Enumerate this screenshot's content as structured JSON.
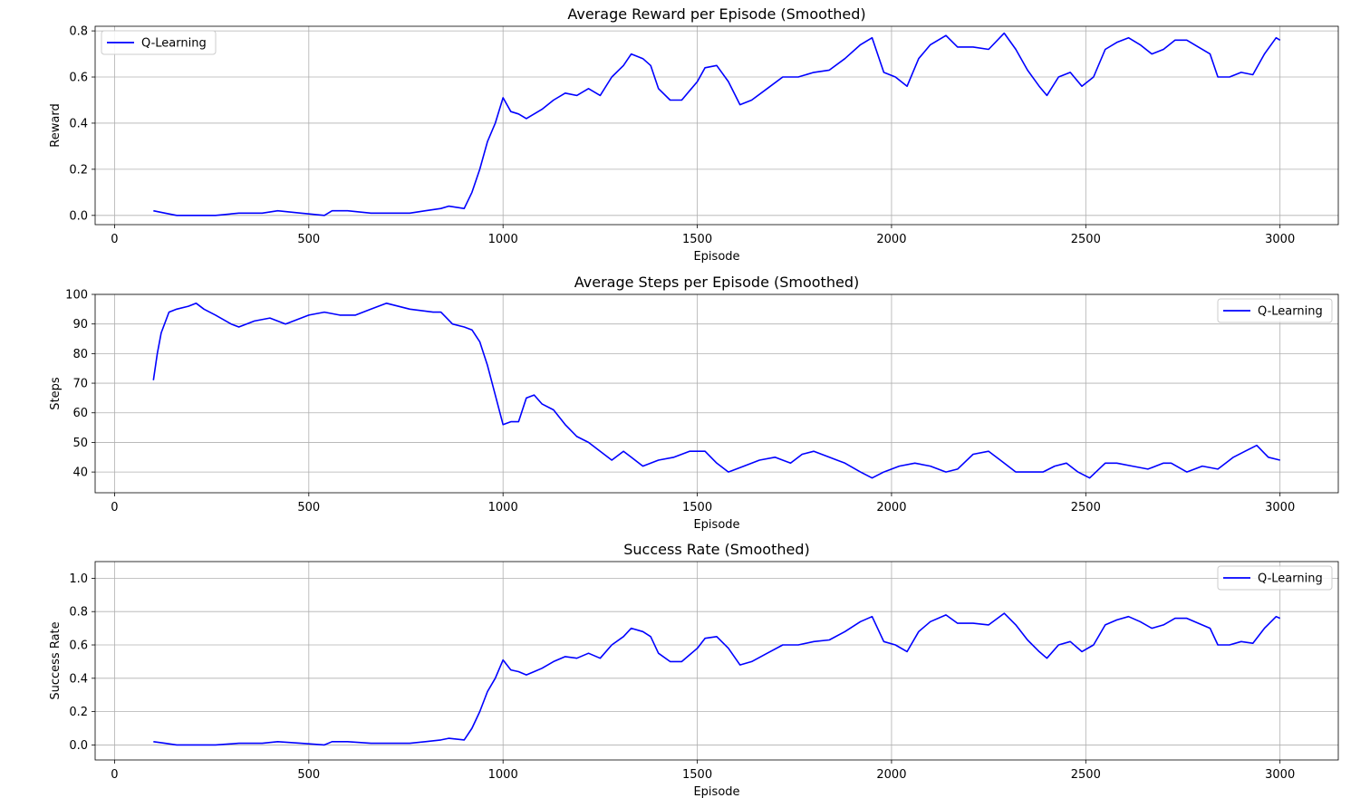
{
  "colors": {
    "series": "#0000ff",
    "grid": "#b0b0b0",
    "axes": "#000000",
    "background": "#ffffff"
  },
  "chart_data": [
    {
      "type": "line",
      "title": "Average Reward per Episode (Smoothed)",
      "xlabel": "Episode",
      "ylabel": "Reward",
      "xlim": [
        -50,
        3150
      ],
      "ylim": [
        -0.04,
        0.82
      ],
      "xticks": [
        0,
        500,
        1000,
        1500,
        2000,
        2500,
        3000
      ],
      "yticks": [
        0.0,
        0.2,
        0.4,
        0.6,
        0.8
      ],
      "ytick_labels": [
        "0.0",
        "0.2",
        "0.4",
        "0.6",
        "0.8"
      ],
      "grid": true,
      "legend": {
        "position": "top-left",
        "entries": [
          "Q-Learning"
        ]
      },
      "series": [
        {
          "name": "Q-Learning",
          "x": [
            100,
            130,
            160,
            200,
            260,
            320,
            380,
            420,
            480,
            540,
            560,
            600,
            660,
            700,
            760,
            800,
            840,
            860,
            900,
            920,
            940,
            960,
            980,
            1000,
            1020,
            1040,
            1060,
            1080,
            1100,
            1130,
            1160,
            1190,
            1220,
            1250,
            1280,
            1310,
            1330,
            1360,
            1380,
            1400,
            1430,
            1460,
            1500,
            1520,
            1550,
            1580,
            1610,
            1640,
            1680,
            1720,
            1760,
            1800,
            1840,
            1880,
            1920,
            1950,
            1980,
            2010,
            2040,
            2070,
            2100,
            2140,
            2170,
            2210,
            2250,
            2290,
            2320,
            2350,
            2380,
            2400,
            2430,
            2460,
            2490,
            2520,
            2550,
            2580,
            2610,
            2640,
            2670,
            2700,
            2730,
            2760,
            2790,
            2820,
            2840,
            2870,
            2900,
            2930,
            2960,
            2990,
            3000
          ],
          "y": [
            0.02,
            0.01,
            0.0,
            0.0,
            0.0,
            0.01,
            0.01,
            0.02,
            0.01,
            0.0,
            0.02,
            0.02,
            0.01,
            0.01,
            0.01,
            0.02,
            0.03,
            0.04,
            0.03,
            0.1,
            0.2,
            0.32,
            0.4,
            0.51,
            0.45,
            0.44,
            0.42,
            0.44,
            0.46,
            0.5,
            0.53,
            0.52,
            0.55,
            0.52,
            0.6,
            0.65,
            0.7,
            0.68,
            0.65,
            0.55,
            0.5,
            0.5,
            0.58,
            0.64,
            0.65,
            0.58,
            0.48,
            0.5,
            0.55,
            0.6,
            0.6,
            0.62,
            0.63,
            0.68,
            0.74,
            0.77,
            0.62,
            0.6,
            0.56,
            0.68,
            0.74,
            0.78,
            0.73,
            0.73,
            0.72,
            0.79,
            0.72,
            0.63,
            0.56,
            0.52,
            0.6,
            0.62,
            0.56,
            0.6,
            0.72,
            0.75,
            0.77,
            0.74,
            0.7,
            0.72,
            0.76,
            0.76,
            0.73,
            0.7,
            0.6,
            0.6,
            0.62,
            0.61,
            0.7,
            0.77,
            0.76
          ]
        }
      ]
    },
    {
      "type": "line",
      "title": "Average Steps per Episode (Smoothed)",
      "xlabel": "Episode",
      "ylabel": "Steps",
      "xlim": [
        -50,
        3150
      ],
      "ylim": [
        33,
        100
      ],
      "xticks": [
        0,
        500,
        1000,
        1500,
        2000,
        2500,
        3000
      ],
      "yticks": [
        40,
        50,
        60,
        70,
        80,
        90,
        100
      ],
      "ytick_labels": [
        "40",
        "50",
        "60",
        "70",
        "80",
        "90",
        "100"
      ],
      "grid": true,
      "legend": {
        "position": "top-right",
        "entries": [
          "Q-Learning"
        ]
      },
      "series": [
        {
          "name": "Q-Learning",
          "x": [
            100,
            110,
            120,
            140,
            160,
            190,
            210,
            230,
            260,
            300,
            320,
            360,
            400,
            440,
            500,
            540,
            580,
            620,
            660,
            700,
            760,
            820,
            840,
            870,
            900,
            920,
            940,
            960,
            980,
            1000,
            1020,
            1040,
            1060,
            1080,
            1100,
            1130,
            1160,
            1190,
            1220,
            1250,
            1280,
            1310,
            1330,
            1360,
            1400,
            1440,
            1480,
            1520,
            1550,
            1580,
            1620,
            1660,
            1700,
            1740,
            1770,
            1800,
            1840,
            1880,
            1920,
            1950,
            1980,
            2020,
            2060,
            2100,
            2140,
            2170,
            2210,
            2250,
            2280,
            2320,
            2350,
            2390,
            2420,
            2450,
            2480,
            2510,
            2550,
            2580,
            2620,
            2660,
            2700,
            2720,
            2760,
            2800,
            2840,
            2880,
            2910,
            2940,
            2970,
            3000
          ],
          "y": [
            71,
            80,
            87,
            94,
            95,
            96,
            97,
            95,
            93,
            90,
            89,
            91,
            92,
            90,
            93,
            94,
            93,
            93,
            95,
            97,
            95,
            94,
            94,
            90,
            89,
            88,
            84,
            76,
            66,
            56,
            57,
            57,
            65,
            66,
            63,
            61,
            56,
            52,
            50,
            47,
            44,
            47,
            45,
            42,
            44,
            45,
            47,
            47,
            43,
            40,
            42,
            44,
            45,
            43,
            46,
            47,
            45,
            43,
            40,
            38,
            40,
            42,
            43,
            42,
            40,
            41,
            46,
            47,
            44,
            40,
            40,
            40,
            42,
            43,
            40,
            38,
            43,
            43,
            42,
            41,
            43,
            43,
            40,
            42,
            41,
            45,
            47,
            49,
            45,
            44
          ]
        }
      ]
    },
    {
      "type": "line",
      "title": "Success Rate (Smoothed)",
      "xlabel": "Episode",
      "ylabel": "Success Rate",
      "xlim": [
        -50,
        3150
      ],
      "ylim": [
        -0.09,
        1.1
      ],
      "xticks": [
        0,
        500,
        1000,
        1500,
        2000,
        2500,
        3000
      ],
      "yticks": [
        0.0,
        0.2,
        0.4,
        0.6,
        0.8,
        1.0
      ],
      "ytick_labels": [
        "0.0",
        "0.2",
        "0.4",
        "0.6",
        "0.8",
        "1.0"
      ],
      "grid": true,
      "legend": {
        "position": "top-right",
        "entries": [
          "Q-Learning"
        ]
      },
      "series": [
        {
          "name": "Q-Learning",
          "x": [
            100,
            130,
            160,
            200,
            260,
            320,
            380,
            420,
            480,
            540,
            560,
            600,
            660,
            700,
            760,
            800,
            840,
            860,
            900,
            920,
            940,
            960,
            980,
            1000,
            1020,
            1040,
            1060,
            1080,
            1100,
            1130,
            1160,
            1190,
            1220,
            1250,
            1280,
            1310,
            1330,
            1360,
            1380,
            1400,
            1430,
            1460,
            1500,
            1520,
            1550,
            1580,
            1610,
            1640,
            1680,
            1720,
            1760,
            1800,
            1840,
            1880,
            1920,
            1950,
            1980,
            2010,
            2040,
            2070,
            2100,
            2140,
            2170,
            2210,
            2250,
            2290,
            2320,
            2350,
            2380,
            2400,
            2430,
            2460,
            2490,
            2520,
            2550,
            2580,
            2610,
            2640,
            2670,
            2700,
            2730,
            2760,
            2790,
            2820,
            2840,
            2870,
            2900,
            2930,
            2960,
            2990,
            3000
          ],
          "y": [
            0.02,
            0.01,
            0.0,
            0.0,
            0.0,
            0.01,
            0.01,
            0.02,
            0.01,
            0.0,
            0.02,
            0.02,
            0.01,
            0.01,
            0.01,
            0.02,
            0.03,
            0.04,
            0.03,
            0.1,
            0.2,
            0.32,
            0.4,
            0.51,
            0.45,
            0.44,
            0.42,
            0.44,
            0.46,
            0.5,
            0.53,
            0.52,
            0.55,
            0.52,
            0.6,
            0.65,
            0.7,
            0.68,
            0.65,
            0.55,
            0.5,
            0.5,
            0.58,
            0.64,
            0.65,
            0.58,
            0.48,
            0.5,
            0.55,
            0.6,
            0.6,
            0.62,
            0.63,
            0.68,
            0.74,
            0.77,
            0.62,
            0.6,
            0.56,
            0.68,
            0.74,
            0.78,
            0.73,
            0.73,
            0.72,
            0.79,
            0.72,
            0.63,
            0.56,
            0.52,
            0.6,
            0.62,
            0.56,
            0.6,
            0.72,
            0.75,
            0.77,
            0.74,
            0.7,
            0.72,
            0.76,
            0.76,
            0.73,
            0.7,
            0.6,
            0.6,
            0.62,
            0.61,
            0.7,
            0.77,
            0.76
          ]
        }
      ]
    }
  ]
}
